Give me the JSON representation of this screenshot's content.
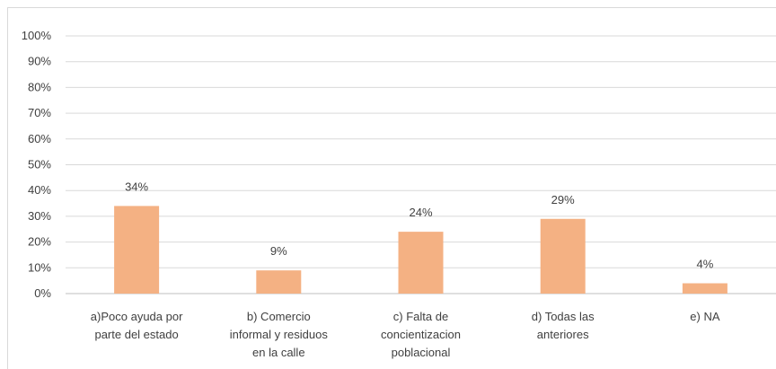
{
  "chart_data": {
    "type": "bar",
    "title": "",
    "xlabel": "",
    "ylabel": "",
    "ylim": [
      0,
      100
    ],
    "y_ticks": [
      "0%",
      "10%",
      "20%",
      "30%",
      "40%",
      "50%",
      "60%",
      "70%",
      "80%",
      "90%",
      "100%"
    ],
    "grid": true,
    "legend": "none",
    "bar_color": "#f4b183",
    "categories": [
      [
        "a)Poco ayuda por",
        "parte del estado"
      ],
      [
        "b) Comercio",
        "informal y residuos",
        "en la calle"
      ],
      [
        "c) Falta de",
        "concientizacion",
        "poblacional"
      ],
      [
        "d) Todas las",
        "anteriores"
      ],
      [
        "e) NA"
      ]
    ],
    "values": [
      34,
      9,
      24,
      29,
      4
    ],
    "data_labels": [
      "34%",
      "9%",
      "24%",
      "29%",
      "4%"
    ]
  }
}
